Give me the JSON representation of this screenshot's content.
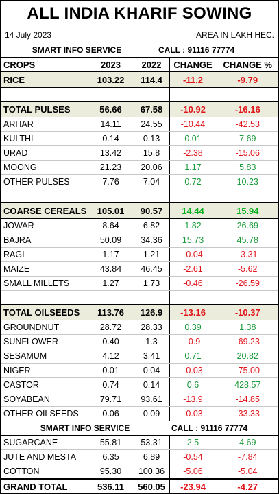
{
  "title": "ALL INDIA KHARIF SOWING",
  "date": "14 July 2023",
  "unit_note": "AREA IN LAKH HEC.",
  "service": {
    "name": "SMART INFO SERVICE",
    "call": "CALL : 91116 77774"
  },
  "columns": [
    "CROPS",
    "2023",
    "2022",
    "CHANGE",
    "CHANGE %"
  ],
  "rows": {
    "rice": {
      "name": "RICE",
      "y2023": "103.22",
      "y2022": "114.4",
      "change": "-11.2",
      "pct": "-9.79"
    },
    "pulses": {
      "name": "TOTAL PULSES",
      "y2023": "56.66",
      "y2022": "67.58",
      "change": "-10.92",
      "pct": "-16.16"
    },
    "arhar": {
      "name": "ARHAR",
      "y2023": "14.11",
      "y2022": "24.55",
      "change": "-10.44",
      "pct": "-42.53"
    },
    "kulthi": {
      "name": "KULTHI",
      "y2023": "0.14",
      "y2022": "0.13",
      "change": "0.01",
      "pct": "7.69"
    },
    "urad": {
      "name": "URAD",
      "y2023": "13.42",
      "y2022": "15.8",
      "change": "-2.38",
      "pct": "-15.06"
    },
    "moong": {
      "name": "MOONG",
      "y2023": "21.23",
      "y2022": "20.06",
      "change": "1.17",
      "pct": "5.83"
    },
    "other_pulses": {
      "name": "OTHER PULSES",
      "y2023": "7.76",
      "y2022": "7.04",
      "change": "0.72",
      "pct": "10.23"
    },
    "coarse": {
      "name": "COARSE CEREALS",
      "y2023": "105.01",
      "y2022": "90.57",
      "change": "14.44",
      "pct": "15.94"
    },
    "jowar": {
      "name": "JOWAR",
      "y2023": "8.64",
      "y2022": "6.82",
      "change": "1.82",
      "pct": "26.69"
    },
    "bajra": {
      "name": "BAJRA",
      "y2023": "50.09",
      "y2022": "34.36",
      "change": "15.73",
      "pct": "45.78"
    },
    "ragi": {
      "name": "RAGI",
      "y2023": "1.17",
      "y2022": "1.21",
      "change": "-0.04",
      "pct": "-3.31"
    },
    "maize": {
      "name": "MAIZE",
      "y2023": "43.84",
      "y2022": "46.45",
      "change": "-2.61",
      "pct": "-5.62"
    },
    "small_millets": {
      "name": "SMALL MILLETS",
      "y2023": "1.27",
      "y2022": "1.73",
      "change": "-0.46",
      "pct": "-26.59"
    },
    "oilseeds": {
      "name": "TOTAL OILSEEDS",
      "y2023": "113.76",
      "y2022": "126.9",
      "change": "-13.16",
      "pct": "-10.37"
    },
    "groundnut": {
      "name": "GROUNDNUT",
      "y2023": "28.72",
      "y2022": "28.33",
      "change": "0.39",
      "pct": "1.38"
    },
    "sunflower": {
      "name": "SUNFLOWER",
      "y2023": "0.40",
      "y2022": "1.3",
      "change": "-0.9",
      "pct": "-69.23"
    },
    "sesamum": {
      "name": "SESAMUM",
      "y2023": "4.12",
      "y2022": "3.41",
      "change": "0.71",
      "pct": "20.82"
    },
    "niger": {
      "name": "NIGER",
      "y2023": "0.01",
      "y2022": "0.04",
      "change": "-0.03",
      "pct": "-75.00"
    },
    "castor": {
      "name": "CASTOR",
      "y2023": "0.74",
      "y2022": "0.14",
      "change": "0.6",
      "pct": "428.57"
    },
    "soyabean": {
      "name": "SOYABEAN",
      "y2023": "79.71",
      "y2022": "93.61",
      "change": "-13.9",
      "pct": "-14.85"
    },
    "other_oilseeds": {
      "name": "OTHER OILSEEDS",
      "y2023": "0.06",
      "y2022": "0.09",
      "change": "-0.03",
      "pct": "-33.33"
    },
    "sugarcane": {
      "name": "SUGARCANE",
      "y2023": "55.81",
      "y2022": "53.31",
      "change": "2.5",
      "pct": "4.69"
    },
    "jute": {
      "name": "JUTE AND MESTA",
      "y2023": "6.35",
      "y2022": "6.89",
      "change": "-0.54",
      "pct": "-7.84"
    },
    "cotton": {
      "name": "COTTON",
      "y2023": "95.30",
      "y2022": "100.36",
      "change": "-5.06",
      "pct": "-5.04"
    },
    "grand_total": {
      "name": "GRAND TOTAL",
      "y2023": "536.11",
      "y2022": "560.05",
      "change": "-23.94",
      "pct": "-4.27"
    }
  },
  "colors": {
    "positive": "#1a9a3a",
    "negative": "#e0151b",
    "group_bg": "#ececdc"
  }
}
